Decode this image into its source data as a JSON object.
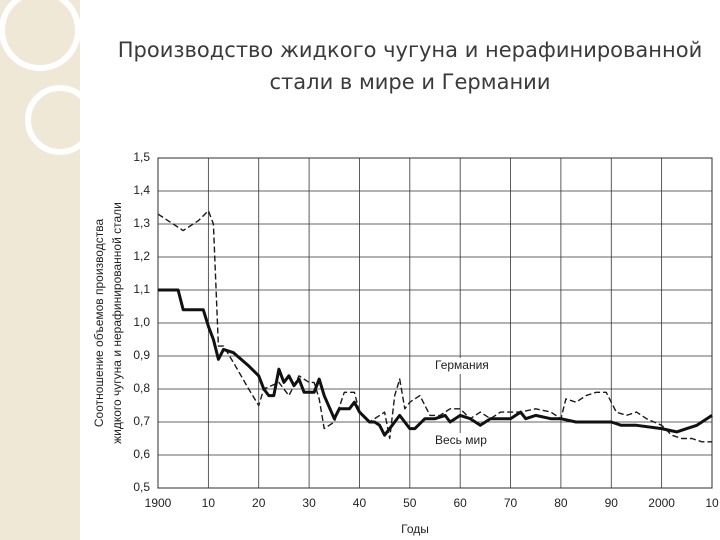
{
  "chart_data": {
    "type": "line",
    "title": "Производство жидкого чугуна и нерафинированной стали в мире и Германии",
    "ylabel": [
      "Соотношение объемов производства",
      "жидкого чугуна и нерафинированной стали"
    ],
    "xlabel": "Годы",
    "xlim": [
      1900,
      2010
    ],
    "xticks": [
      {
        "value": 1900,
        "label": "1900"
      },
      {
        "value": 1910,
        "label": "10"
      },
      {
        "value": 1920,
        "label": "20"
      },
      {
        "value": 1930,
        "label": "30"
      },
      {
        "value": 1940,
        "label": "40"
      },
      {
        "value": 1950,
        "label": "50"
      },
      {
        "value": 1960,
        "label": "60"
      },
      {
        "value": 1970,
        "label": "70"
      },
      {
        "value": 1980,
        "label": "80"
      },
      {
        "value": 1990,
        "label": "90"
      },
      {
        "value": 2000,
        "label": "2000"
      },
      {
        "value": 2010,
        "label": "10"
      }
    ],
    "ylim": [
      0.5,
      1.5
    ],
    "yticks": [
      {
        "value": 0.5,
        "label": "0,5"
      },
      {
        "value": 0.6,
        "label": "0,6"
      },
      {
        "value": 0.7,
        "label": "0,7"
      },
      {
        "value": 0.8,
        "label": "0,8"
      },
      {
        "value": 0.9,
        "label": "0,9"
      },
      {
        "value": 1.0,
        "label": "1,0"
      },
      {
        "value": 1.1,
        "label": "1,1"
      },
      {
        "value": 1.2,
        "label": "1,2"
      },
      {
        "value": 1.3,
        "label": "1,3"
      },
      {
        "value": 1.4,
        "label": "1,4"
      },
      {
        "value": 1.5,
        "label": "1,5"
      }
    ],
    "grid": true,
    "series": [
      {
        "name": "Германия",
        "color": "#1a1a1a",
        "dash": true,
        "x": [
          1900,
          1905,
          1908,
          1910,
          1911,
          1912,
          1913,
          1915,
          1918,
          1920,
          1921,
          1924,
          1926,
          1928,
          1930,
          1931,
          1932,
          1933,
          1935,
          1937,
          1939,
          1940,
          1942,
          1944,
          1945,
          1946,
          1947,
          1948,
          1949,
          1950,
          1952,
          1954,
          1956,
          1958,
          1960,
          1962,
          1964,
          1966,
          1968,
          1970,
          1972,
          1975,
          1978,
          1980,
          1981,
          1983,
          1985,
          1987,
          1989,
          1990,
          1991,
          1993,
          1995,
          1997,
          2000,
          2002,
          2004,
          2006,
          2008,
          2010
        ],
        "values": [
          1.33,
          1.28,
          1.31,
          1.34,
          1.3,
          0.93,
          0.93,
          0.88,
          0.8,
          0.75,
          0.8,
          0.82,
          0.78,
          0.84,
          0.82,
          0.82,
          0.77,
          0.68,
          0.7,
          0.79,
          0.79,
          0.73,
          0.7,
          0.72,
          0.73,
          0.65,
          0.78,
          0.83,
          0.74,
          0.76,
          0.78,
          0.72,
          0.72,
          0.74,
          0.74,
          0.71,
          0.73,
          0.71,
          0.73,
          0.73,
          0.73,
          0.74,
          0.73,
          0.71,
          0.77,
          0.76,
          0.78,
          0.79,
          0.79,
          0.76,
          0.73,
          0.72,
          0.73,
          0.71,
          0.69,
          0.66,
          0.65,
          0.65,
          0.64,
          0.64
        ]
      },
      {
        "name": "Весь мир",
        "color": "#111111",
        "dash": false,
        "x": [
          1900,
          1904,
          1905,
          1909,
          1910,
          1911,
          1912,
          1913,
          1915,
          1918,
          1920,
          1921,
          1922,
          1923,
          1924,
          1925,
          1926,
          1927,
          1928,
          1929,
          1931,
          1932,
          1933,
          1935,
          1936,
          1938,
          1939,
          1940,
          1942,
          1943,
          1944,
          1945,
          1946,
          1948,
          1950,
          1951,
          1953,
          1955,
          1957,
          1958,
          1960,
          1962,
          1964,
          1966,
          1970,
          1972,
          1973,
          1975,
          1978,
          1980,
          1983,
          1990,
          1992,
          1995,
          2000,
          2003,
          2005,
          2007,
          2010
        ],
        "values": [
          1.1,
          1.1,
          1.04,
          1.04,
          0.99,
          0.95,
          0.89,
          0.92,
          0.91,
          0.87,
          0.84,
          0.8,
          0.78,
          0.78,
          0.86,
          0.82,
          0.84,
          0.81,
          0.83,
          0.79,
          0.79,
          0.83,
          0.78,
          0.71,
          0.74,
          0.74,
          0.76,
          0.73,
          0.7,
          0.7,
          0.69,
          0.66,
          0.68,
          0.72,
          0.68,
          0.68,
          0.71,
          0.71,
          0.72,
          0.7,
          0.72,
          0.71,
          0.69,
          0.71,
          0.71,
          0.73,
          0.71,
          0.72,
          0.71,
          0.71,
          0.7,
          0.7,
          0.69,
          0.69,
          0.68,
          0.67,
          0.68,
          0.69,
          0.72
        ]
      }
    ]
  }
}
